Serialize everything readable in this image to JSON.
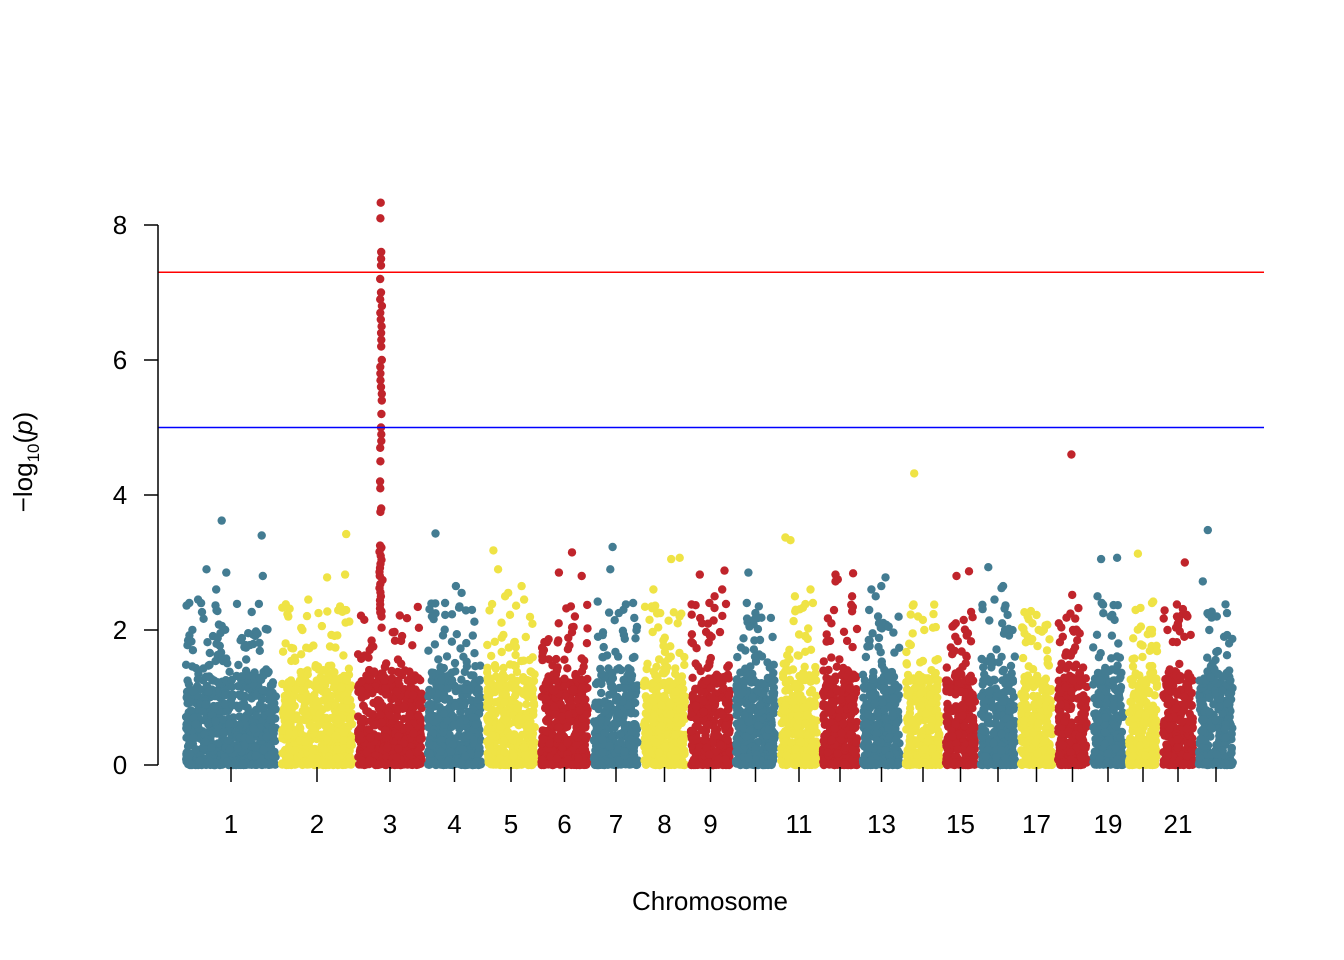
{
  "chart_data": {
    "type": "scatter",
    "subtype": "manhattan",
    "title": "",
    "xlabel": "Chromosome",
    "ylabel": {
      "prefix": "−log",
      "subscript": "10",
      "open": "(",
      "variable": "p",
      "close": ")"
    },
    "ylim": [
      0,
      8.5
    ],
    "yticks": [
      0,
      2,
      4,
      6,
      8
    ],
    "grid": false,
    "legend": "none",
    "point_colors": [
      "#437C92",
      "#EFE345",
      "#C0242B"
    ],
    "thresholds": [
      {
        "value": 7.3,
        "color": "#FF0000"
      },
      {
        "value": 5.0,
        "color": "#0000FF"
      }
    ],
    "chromosomes": [
      {
        "chr": 1,
        "label": "1",
        "max": 3.62,
        "tops": [
          3.62,
          3.4,
          2.9,
          2.85,
          2.8,
          2.6,
          2.45,
          2.4
        ]
      },
      {
        "chr": 2,
        "label": "2",
        "max": 3.42,
        "tops": [
          3.42,
          2.82,
          2.78,
          2.45,
          2.35,
          2.25
        ]
      },
      {
        "chr": 3,
        "label": "3",
        "max": 8.33,
        "tops": [
          8.33,
          8.1,
          7.6,
          7.5,
          7.4,
          7.2,
          7.0,
          6.9,
          6.8,
          6.7,
          6.6,
          6.5,
          6.4,
          6.3,
          6.2,
          6.0,
          5.9,
          5.8,
          5.7,
          5.6,
          5.5,
          5.4,
          5.2,
          5.0,
          4.9,
          4.8,
          4.7,
          4.5,
          4.2,
          4.1,
          3.8,
          3.75,
          3.25,
          3.22
        ]
      },
      {
        "chr": 4,
        "label": "4",
        "max": 3.43,
        "tops": [
          3.43,
          2.65,
          2.55,
          2.4,
          2.35,
          2.2
        ]
      },
      {
        "chr": 5,
        "label": "5",
        "max": 3.18,
        "tops": [
          3.18,
          2.9,
          2.65,
          2.55,
          2.5,
          2.45
        ]
      },
      {
        "chr": 6,
        "label": "6",
        "max": 3.15,
        "tops": [
          3.15,
          2.85,
          2.8,
          2.35,
          2.2,
          2.1
        ]
      },
      {
        "chr": 7,
        "label": "7",
        "max": 3.23,
        "tops": [
          3.23,
          2.9,
          2.42,
          2.38,
          2.3,
          2.25
        ]
      },
      {
        "chr": 8,
        "label": "8",
        "max": 3.07,
        "tops": [
          3.07,
          3.05,
          2.6,
          2.25,
          2.2,
          2.1
        ]
      },
      {
        "chr": 9,
        "label": "9",
        "max": 2.88,
        "tops": [
          2.88,
          2.82,
          2.6,
          2.5,
          2.4,
          2.1
        ]
      },
      {
        "chr": 10,
        "label": "",
        "max": 2.85,
        "tops": [
          2.85,
          2.4,
          2.35,
          2.25,
          2.15,
          2.05
        ]
      },
      {
        "chr": 11,
        "label": "11",
        "max": 3.37,
        "tops": [
          3.37,
          3.33,
          2.6,
          2.5,
          2.4,
          2.3
        ]
      },
      {
        "chr": 12,
        "label": "",
        "max": 2.84,
        "tops": [
          2.84,
          2.82,
          2.75,
          2.72,
          2.5,
          2.1
        ]
      },
      {
        "chr": 13,
        "label": "13",
        "max": 2.78,
        "tops": [
          2.78,
          2.65,
          2.6,
          2.5,
          2.2,
          2.05
        ]
      },
      {
        "chr": 14,
        "label": "",
        "max": 4.32,
        "tops": [
          4.32,
          2.38,
          2.2,
          2.15,
          2.0,
          1.95
        ]
      },
      {
        "chr": 15,
        "label": "15",
        "max": 2.87,
        "tops": [
          2.87,
          2.8,
          2.1,
          2.05,
          1.95,
          1.9
        ]
      },
      {
        "chr": 16,
        "label": "",
        "max": 2.93,
        "tops": [
          2.93,
          2.65,
          2.62,
          2.45,
          2.1,
          2.0
        ]
      },
      {
        "chr": 17,
        "label": "17",
        "max": 2.28,
        "tops": [
          2.28,
          2.2,
          2.1,
          2.0,
          1.95,
          1.9
        ]
      },
      {
        "chr": 18,
        "label": "",
        "max": 4.6,
        "tops": [
          4.6,
          2.52,
          2.0,
          1.98,
          1.95,
          1.9
        ]
      },
      {
        "chr": 19,
        "label": "19",
        "max": 3.07,
        "tops": [
          3.07,
          3.05,
          2.5,
          2.4,
          2.2,
          2.15
        ]
      },
      {
        "chr": 20,
        "label": "",
        "max": 3.13,
        "tops": [
          3.13,
          2.42,
          2.4,
          2.05,
          2.0,
          1.95
        ]
      },
      {
        "chr": 21,
        "label": "21",
        "max": 3.0,
        "tops": [
          3.0,
          2.2,
          2.15,
          2.0,
          1.98,
          1.9
        ]
      },
      {
        "chr": 22,
        "label": "",
        "max": 3.48,
        "tops": [
          3.48,
          2.72,
          2.25,
          2.2,
          2.0,
          1.9
        ]
      }
    ]
  }
}
